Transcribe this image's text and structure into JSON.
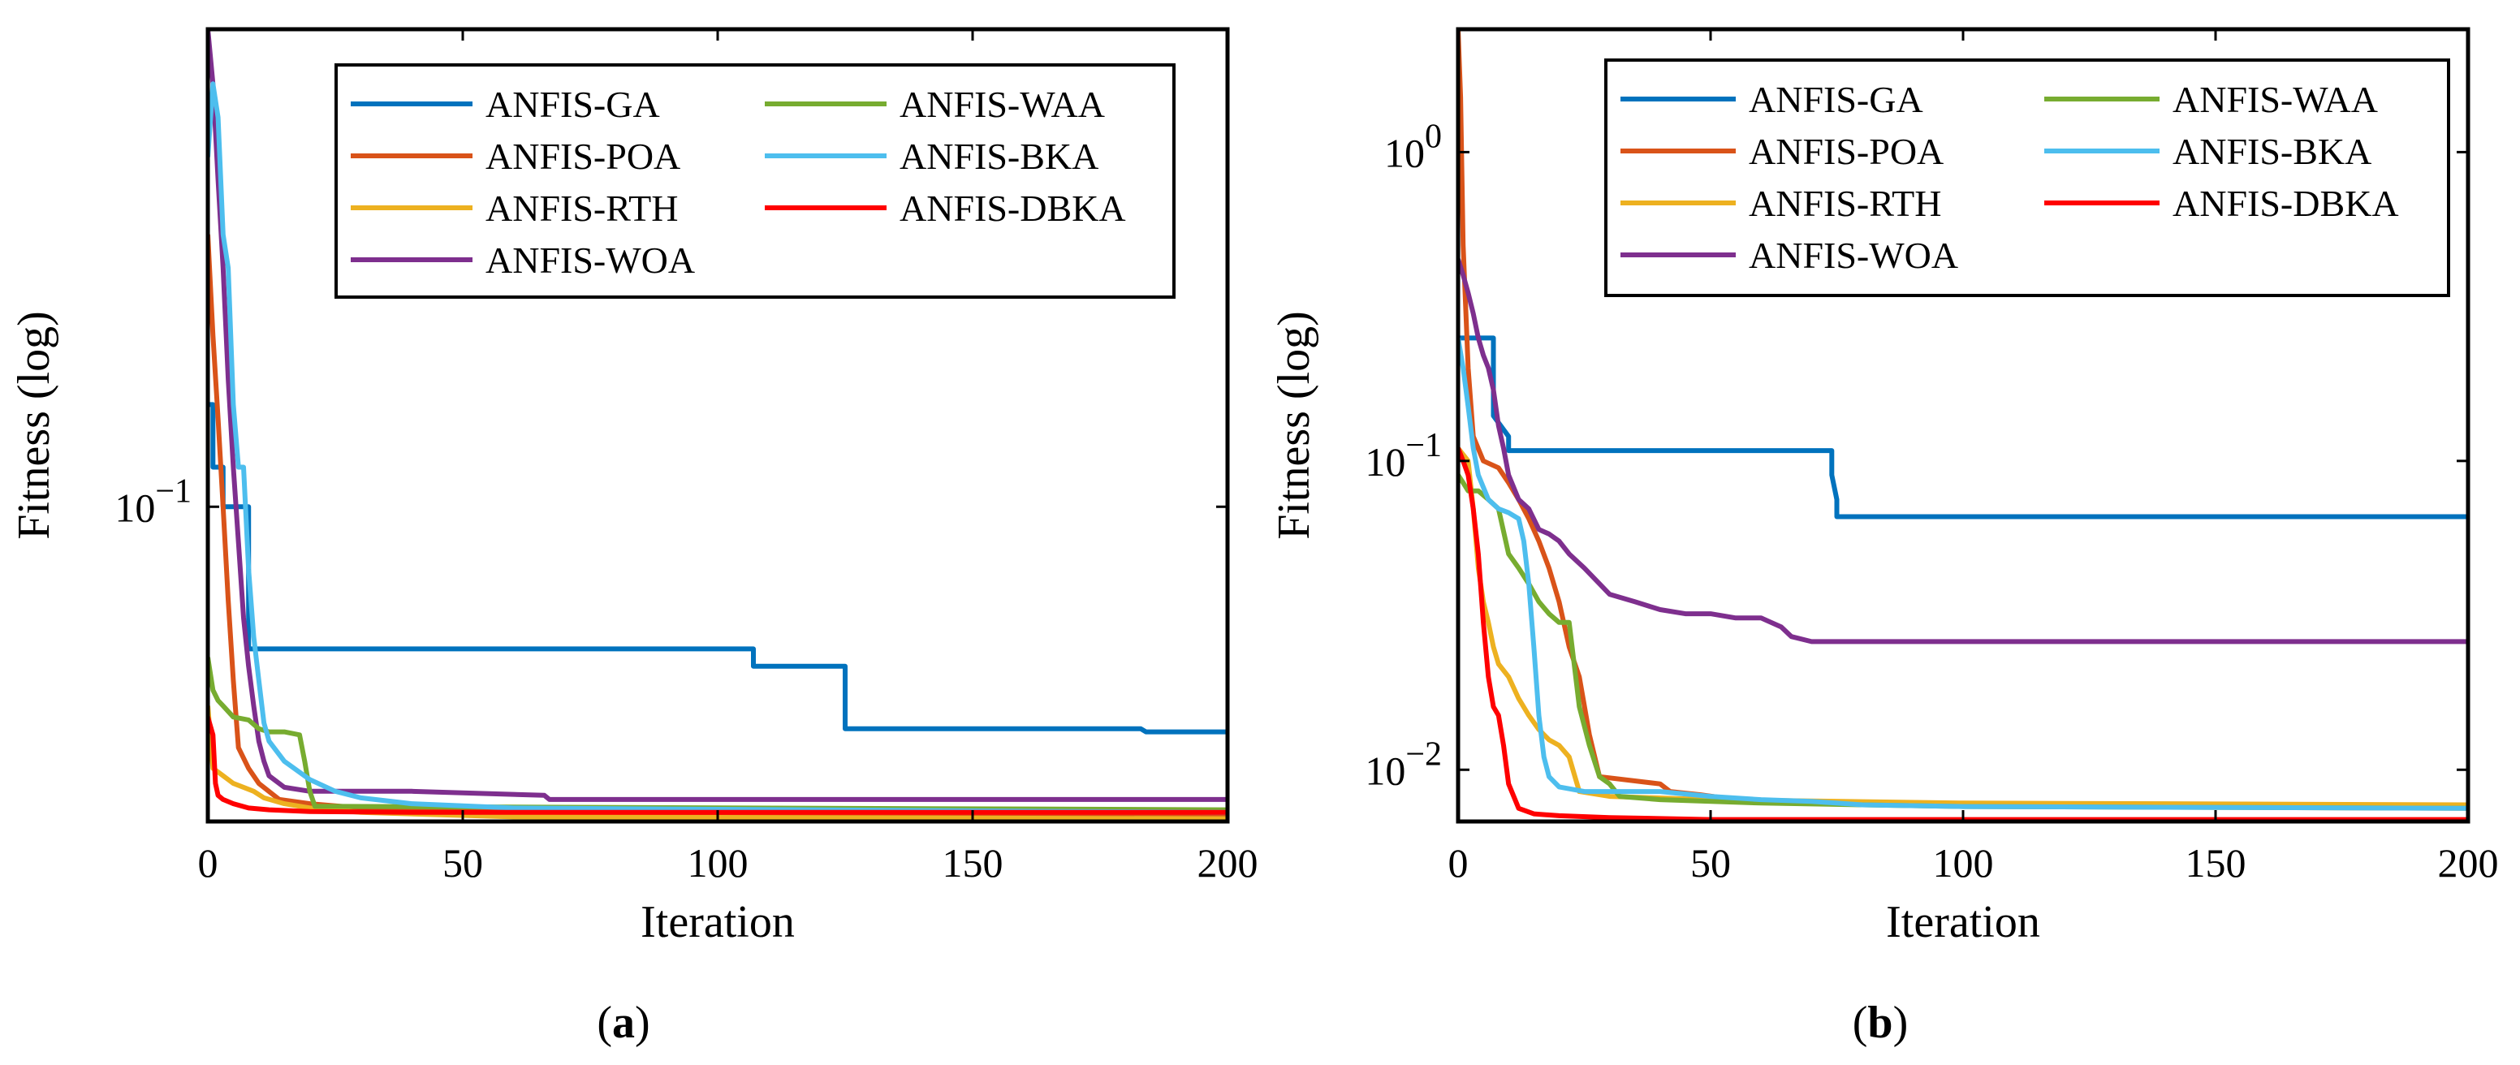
{
  "chart_data": [
    {
      "type": "line",
      "panel": "a",
      "panel_label": {
        "open": "(",
        "letter": "a",
        "close": ")"
      },
      "title": "",
      "xlabel": "Iteration",
      "ylabel": "Fitness (log)",
      "xlim": [
        0,
        200
      ],
      "ylim": [
        0.0235,
        0.9
      ],
      "yscale": "log",
      "xticks": [
        0,
        50,
        100,
        150,
        200
      ],
      "yticks": [
        {
          "value": 0.1,
          "base": "10",
          "exp": "−1"
        }
      ],
      "grid": false,
      "legend": {
        "position": "top-right",
        "columns": 2
      },
      "series": [
        {
          "name": "ANFIS-GA",
          "color": "#0072BD",
          "x": [
            0,
            1,
            1,
            3,
            3,
            8,
            8,
            107,
            107,
            125,
            125,
            183,
            184,
            200
          ],
          "y": [
            0.16,
            0.16,
            0.12,
            0.12,
            0.1,
            0.1,
            0.052,
            0.052,
            0.048,
            0.048,
            0.036,
            0.036,
            0.0355,
            0.0355
          ]
        },
        {
          "name": "ANFIS-POA",
          "color": "#D95319",
          "x": [
            0,
            1,
            2,
            3,
            4,
            5,
            6,
            8,
            10,
            14,
            20,
            30,
            60,
            200
          ],
          "y": [
            0.35,
            0.22,
            0.15,
            0.1,
            0.065,
            0.045,
            0.033,
            0.03,
            0.028,
            0.026,
            0.0255,
            0.025,
            0.0245,
            0.024
          ]
        },
        {
          "name": "ANFIS-RTH",
          "color": "#EDB120",
          "x": [
            0,
            1,
            2,
            3,
            4,
            5,
            7,
            9,
            11,
            15,
            20,
            30,
            60,
            200
          ],
          "y": [
            0.04,
            0.03,
            0.0295,
            0.029,
            0.0285,
            0.028,
            0.0275,
            0.027,
            0.0262,
            0.0255,
            0.025,
            0.0245,
            0.024,
            0.0238
          ]
        },
        {
          "name": "ANFIS-WOA",
          "color": "#7E2F8E",
          "x": [
            0,
            1,
            2,
            3,
            4,
            5,
            6,
            7,
            8,
            9,
            10,
            11,
            12,
            15,
            20,
            40,
            66,
            67,
            200
          ],
          "y": [
            0.9,
            0.7,
            0.45,
            0.3,
            0.18,
            0.12,
            0.085,
            0.06,
            0.048,
            0.04,
            0.034,
            0.031,
            0.029,
            0.0275,
            0.027,
            0.027,
            0.0265,
            0.026,
            0.026
          ]
        },
        {
          "name": "ANFIS-WAA",
          "color": "#77AC30",
          "x": [
            0,
            1,
            2,
            3,
            4,
            5,
            8,
            10,
            12,
            15,
            18,
            19,
            20,
            21,
            200
          ],
          "y": [
            0.05,
            0.043,
            0.041,
            0.04,
            0.039,
            0.038,
            0.0375,
            0.036,
            0.0355,
            0.0355,
            0.035,
            0.031,
            0.027,
            0.0252,
            0.0248
          ]
        },
        {
          "name": "ANFIS-BKA",
          "color": "#4DBEEE",
          "x": [
            0,
            1,
            2,
            3,
            4,
            5,
            6,
            7,
            8,
            9,
            10,
            11,
            12,
            15,
            20,
            25,
            30,
            40,
            60,
            200
          ],
          "y": [
            0.5,
            0.7,
            0.6,
            0.35,
            0.3,
            0.16,
            0.12,
            0.12,
            0.075,
            0.055,
            0.045,
            0.037,
            0.034,
            0.031,
            0.0285,
            0.027,
            0.0262,
            0.0255,
            0.025,
            0.0245
          ]
        },
        {
          "name": "ANFIS-DBKA",
          "color": "#FF0000",
          "x": [
            0,
            1,
            1.5,
            2,
            3,
            5,
            8,
            12,
            20,
            40,
            200
          ],
          "y": [
            0.038,
            0.035,
            0.028,
            0.0265,
            0.026,
            0.0255,
            0.025,
            0.0248,
            0.0246,
            0.0245,
            0.0245
          ]
        }
      ]
    },
    {
      "type": "line",
      "panel": "b",
      "panel_label": {
        "open": "(",
        "letter": "b",
        "close": ")"
      },
      "title": "",
      "xlabel": "Iteration",
      "ylabel": "Fitness (log)",
      "xlim": [
        0,
        200
      ],
      "ylim": [
        0.0068,
        2.5
      ],
      "yscale": "log",
      "xticks": [
        0,
        50,
        100,
        150,
        200
      ],
      "yticks": [
        {
          "value": 1,
          "base": "10",
          "exp": "0"
        },
        {
          "value": 0.1,
          "base": "10",
          "exp": "−1"
        },
        {
          "value": 0.01,
          "base": "10",
          "exp": "−2"
        }
      ],
      "grid": false,
      "legend": {
        "position": "top-right",
        "columns": 2
      },
      "series": [
        {
          "name": "ANFIS-GA",
          "color": "#0072BD",
          "x": [
            0,
            7,
            7,
            10,
            10,
            74,
            74,
            75,
            75,
            200
          ],
          "y": [
            0.25,
            0.25,
            0.14,
            0.12,
            0.108,
            0.108,
            0.09,
            0.075,
            0.066,
            0.066
          ]
        },
        {
          "name": "ANFIS-POA",
          "color": "#D95319",
          "x": [
            0,
            0.5,
            1,
            2,
            3,
            5,
            8,
            10,
            12,
            14,
            16,
            18,
            20,
            22,
            24,
            26,
            28,
            40,
            42,
            48,
            55,
            70,
            90,
            200
          ],
          "y": [
            2.5,
            1.5,
            0.5,
            0.2,
            0.12,
            0.1,
            0.095,
            0.085,
            0.075,
            0.065,
            0.055,
            0.045,
            0.035,
            0.025,
            0.02,
            0.013,
            0.0095,
            0.009,
            0.0085,
            0.0083,
            0.008,
            0.0078,
            0.0077,
            0.0076
          ]
        },
        {
          "name": "ANFIS-RTH",
          "color": "#EDB120",
          "x": [
            0,
            2,
            3,
            4,
            5,
            6,
            7,
            8,
            10,
            12,
            14,
            16,
            18,
            20,
            22,
            24,
            30,
            50,
            100,
            200
          ],
          "y": [
            0.11,
            0.1,
            0.07,
            0.045,
            0.035,
            0.03,
            0.025,
            0.022,
            0.02,
            0.017,
            0.015,
            0.0135,
            0.0125,
            0.012,
            0.011,
            0.0085,
            0.0082,
            0.008,
            0.0078,
            0.0077
          ]
        },
        {
          "name": "ANFIS-WOA",
          "color": "#7E2F8E",
          "x": [
            0,
            1,
            2,
            3,
            4,
            5,
            6,
            7,
            8,
            9,
            10,
            12,
            14,
            16,
            18,
            20,
            22,
            25,
            28,
            30,
            35,
            40,
            45,
            50,
            55,
            60,
            64,
            66,
            70,
            200
          ],
          "y": [
            0.45,
            0.4,
            0.35,
            0.3,
            0.25,
            0.22,
            0.2,
            0.17,
            0.13,
            0.11,
            0.09,
            0.075,
            0.07,
            0.06,
            0.058,
            0.055,
            0.05,
            0.045,
            0.04,
            0.037,
            0.035,
            0.033,
            0.032,
            0.032,
            0.031,
            0.031,
            0.029,
            0.027,
            0.026,
            0.026
          ]
        },
        {
          "name": "ANFIS-WAA",
          "color": "#77AC30",
          "x": [
            0,
            1,
            2,
            4,
            6,
            8,
            10,
            12,
            14,
            16,
            18,
            20,
            22,
            24,
            26,
            28,
            30,
            32,
            40,
            60,
            100,
            200
          ],
          "y": [
            0.09,
            0.085,
            0.08,
            0.08,
            0.075,
            0.07,
            0.05,
            0.045,
            0.04,
            0.035,
            0.032,
            0.03,
            0.03,
            0.016,
            0.012,
            0.0095,
            0.009,
            0.0082,
            0.008,
            0.0078,
            0.0076,
            0.0075
          ]
        },
        {
          "name": "ANFIS-BKA",
          "color": "#4DBEEE",
          "x": [
            0,
            1,
            2,
            3,
            4,
            6,
            8,
            10,
            12,
            13,
            14,
            15,
            16,
            17,
            18,
            20,
            25,
            30,
            40,
            50,
            60,
            70,
            80,
            100,
            200
          ],
          "y": [
            0.25,
            0.2,
            0.15,
            0.11,
            0.09,
            0.075,
            0.07,
            0.068,
            0.065,
            0.055,
            0.04,
            0.025,
            0.015,
            0.011,
            0.0095,
            0.0088,
            0.0085,
            0.0085,
            0.0085,
            0.0082,
            0.008,
            0.0079,
            0.0077,
            0.0076,
            0.0075
          ]
        },
        {
          "name": "ANFIS-DBKA",
          "color": "#FF0000",
          "x": [
            0,
            1,
            2,
            3,
            4,
            5,
            6,
            7,
            8,
            9,
            10,
            12,
            15,
            20,
            30,
            50,
            100,
            200
          ],
          "y": [
            0.11,
            0.1,
            0.09,
            0.07,
            0.05,
            0.03,
            0.02,
            0.016,
            0.015,
            0.012,
            0.009,
            0.0075,
            0.0072,
            0.0071,
            0.007,
            0.0069,
            0.0069,
            0.0069
          ]
        }
      ]
    }
  ]
}
